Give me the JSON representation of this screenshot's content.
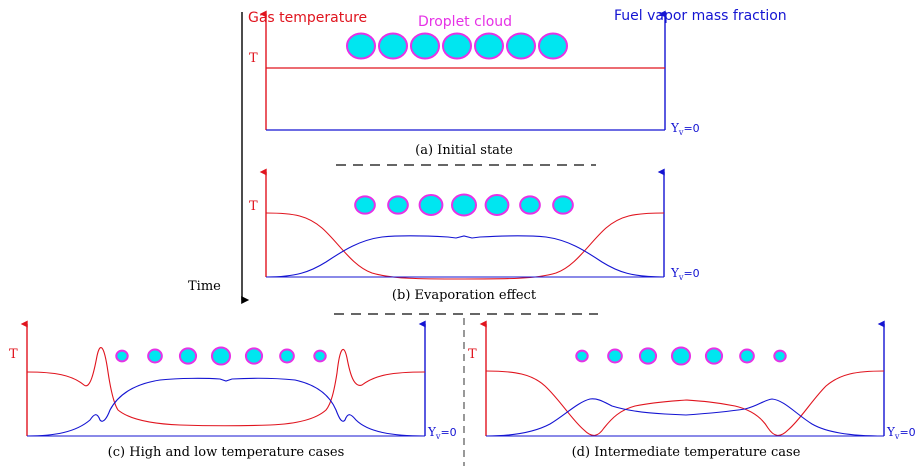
{
  "labels": {
    "gas_temperature": "Gas temperature",
    "droplet_cloud": "Droplet cloud",
    "fuel_vapor": "Fuel vapor mass fraction",
    "time": "Time",
    "T": "T",
    "Y": "Y",
    "v": "v",
    "eq0": "=0"
  },
  "captions": {
    "a": "(a) Initial state",
    "b": "(b) Evaporation effect",
    "c": "(c) High and low temperature cases",
    "d": "(d) Intermediate temperature case"
  },
  "colors": {
    "temperature": "#e0141e",
    "vapor": "#1414d2",
    "droplet_fill": "#00e6f0",
    "droplet_edge": "#e632e6",
    "axis_black": "#000000",
    "dashed": "#333333"
  },
  "droplets": {
    "a": [
      1,
      1,
      1,
      1,
      1,
      1,
      1
    ],
    "b": [
      0.82,
      0.82,
      0.95,
      1.0,
      0.95,
      0.82,
      0.82
    ],
    "c": [
      0.6,
      0.72,
      0.85,
      0.95,
      0.85,
      0.72,
      0.6
    ],
    "d": [
      0.6,
      0.72,
      0.85,
      0.95,
      0.85,
      0.72,
      0.6
    ]
  }
}
